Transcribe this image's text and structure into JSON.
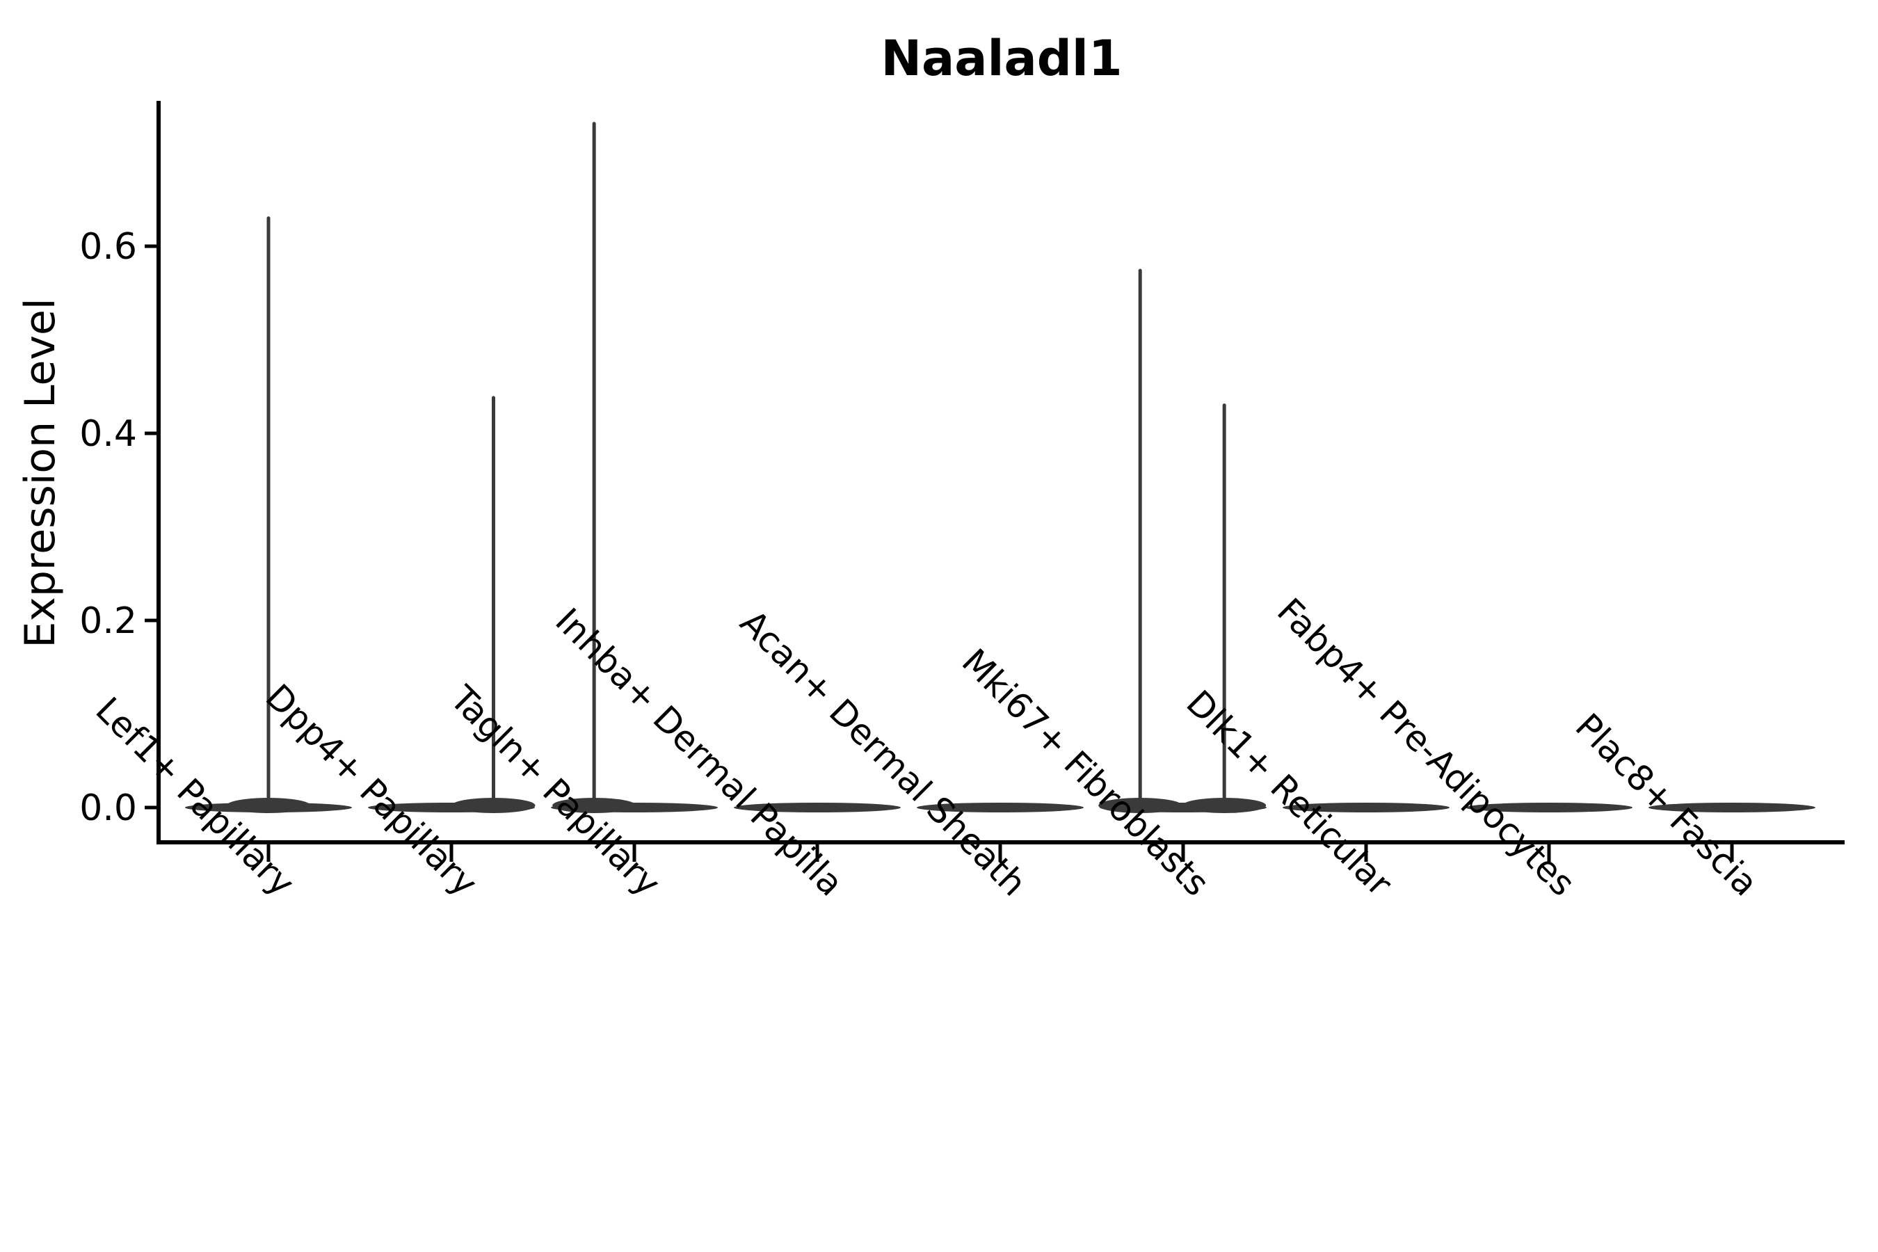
{
  "title": "Naaladl1",
  "colors": {
    "background": "#ffffff",
    "violin": "#3a3a3a",
    "axis": "#000000",
    "text": "#000000"
  },
  "chart_data": {
    "type": "violin",
    "title": "Naaladl1",
    "xlabel": "",
    "ylabel": "Expression Level",
    "ytick_labels": [
      "0.0",
      "0.2",
      "0.4",
      "0.6"
    ],
    "ytick_values": [
      0.0,
      0.2,
      0.4,
      0.6
    ],
    "ylim": [
      -0.035,
      0.76
    ],
    "grid": false,
    "legend": "none",
    "categories": [
      "Lef1+ Papillary",
      "Dpp4+ Papillary",
      "Tagln+ Papillary",
      "Inhba+ Dermal Papilla",
      "Acan+ Dermal Sheath",
      "Mki67+ Fibroblasts",
      "Dlk1+ Reticular",
      "Fabp4+ Pre-Adipocytes",
      "Plac8+ Fascia"
    ],
    "violins": [
      {
        "category": "Lef1+ Papillary",
        "bulk_value": 0.0,
        "max_expression": 0.63,
        "spikes": [
          {
            "offset": 0.0,
            "top": 0.63
          }
        ]
      },
      {
        "category": "Dpp4+ Papillary",
        "bulk_value": 0.0,
        "max_expression": 0.44,
        "spikes": [
          {
            "offset": 0.23,
            "top": 0.438
          }
        ]
      },
      {
        "category": "Tagln+ Papillary",
        "bulk_value": 0.0,
        "max_expression": 0.73,
        "spikes": [
          {
            "offset": -0.22,
            "top": 0.731
          }
        ]
      },
      {
        "category": "Inhba+ Dermal Papilla",
        "bulk_value": 0.0,
        "max_expression": 0.0,
        "spikes": []
      },
      {
        "category": "Acan+ Dermal Sheath",
        "bulk_value": 0.0,
        "max_expression": 0.0,
        "spikes": []
      },
      {
        "category": "Mki67+ Fibroblasts",
        "bulk_value": 0.0,
        "max_expression": 0.57,
        "spikes": [
          {
            "offset": -0.235,
            "top": 0.574
          },
          {
            "offset": 0.225,
            "top": 0.43
          }
        ]
      },
      {
        "category": "Dlk1+ Reticular",
        "bulk_value": 0.0,
        "max_expression": 0.0,
        "spikes": []
      },
      {
        "category": "Fabp4+ Pre-Adipocytes",
        "bulk_value": 0.0,
        "max_expression": 0.0,
        "spikes": []
      },
      {
        "category": "Plac8+ Fascia",
        "bulk_value": 0.0,
        "max_expression": 0.0,
        "spikes": []
      }
    ]
  }
}
